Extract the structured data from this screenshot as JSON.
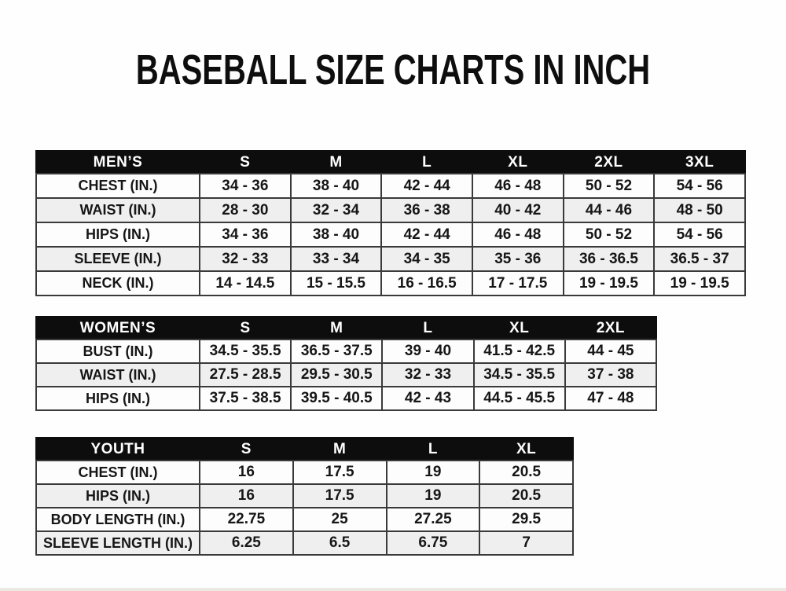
{
  "page": {
    "title": "BASEBALL SIZE CHARTS IN INCH"
  },
  "colors": {
    "header_bg": "#0d0d0d",
    "header_text": "#ffffff",
    "stripe": "#efefef",
    "row_white": "#fdfdfd",
    "border": "#3a3a3a",
    "text": "#161616",
    "page_bg": "#fefefe"
  },
  "tables": [
    {
      "id": "mens",
      "group_label": "MEN’S",
      "columns": [
        "S",
        "M",
        "L",
        "XL",
        "2XL",
        "3XL"
      ],
      "rows": [
        {
          "label": "CHEST (IN.)",
          "values": [
            "34 - 36",
            "38 - 40",
            "42 - 44",
            "46 - 48",
            "50 - 52",
            "54 - 56"
          ]
        },
        {
          "label": "WAIST (IN.)",
          "values": [
            "28 - 30",
            "32 - 34",
            "36 - 38",
            "40 - 42",
            "44 - 46",
            "48 - 50"
          ]
        },
        {
          "label": "HIPS (IN.)",
          "values": [
            "34 - 36",
            "38 - 40",
            "42 - 44",
            "46 - 48",
            "50 - 52",
            "54 - 56"
          ]
        },
        {
          "label": "SLEEVE (IN.)",
          "values": [
            "32 - 33",
            "33 - 34",
            "34 - 35",
            "35 - 36",
            "36 - 36.5",
            "36.5 - 37"
          ]
        },
        {
          "label": "NECK (IN.)",
          "values": [
            "14 - 14.5",
            "15 - 15.5",
            "16 - 16.5",
            "17 - 17.5",
            "19 - 19.5",
            "19 - 19.5"
          ]
        }
      ]
    },
    {
      "id": "womens",
      "group_label": "WOMEN’S",
      "columns": [
        "S",
        "M",
        "L",
        "XL",
        "2XL"
      ],
      "rows": [
        {
          "label": "BUST (IN.)",
          "values": [
            "34.5 - 35.5",
            "36.5 - 37.5",
            "39 - 40",
            "41.5 - 42.5",
            "44 - 45"
          ]
        },
        {
          "label": "WAIST (IN.)",
          "values": [
            "27.5 - 28.5",
            "29.5 - 30.5",
            "32 - 33",
            "34.5 - 35.5",
            "37 - 38"
          ]
        },
        {
          "label": "HIPS (IN.)",
          "values": [
            "37.5 - 38.5",
            "39.5 - 40.5",
            "42 - 43",
            "44.5 - 45.5",
            "47 - 48"
          ]
        }
      ]
    },
    {
      "id": "youth",
      "group_label": "YOUTH",
      "columns": [
        "S",
        "M",
        "L",
        "XL"
      ],
      "rows": [
        {
          "label": "CHEST (IN.)",
          "values": [
            "16",
            "17.5",
            "19",
            "20.5"
          ]
        },
        {
          "label": "HIPS (IN.)",
          "values": [
            "16",
            "17.5",
            "19",
            "20.5"
          ]
        },
        {
          "label": "BODY LENGTH (IN.)",
          "values": [
            "22.75",
            "25",
            "27.25",
            "29.5"
          ]
        },
        {
          "label": "SLEEVE LENGTH (IN.)",
          "values": [
            "6.25",
            "6.5",
            "6.75",
            "7"
          ]
        }
      ]
    }
  ]
}
